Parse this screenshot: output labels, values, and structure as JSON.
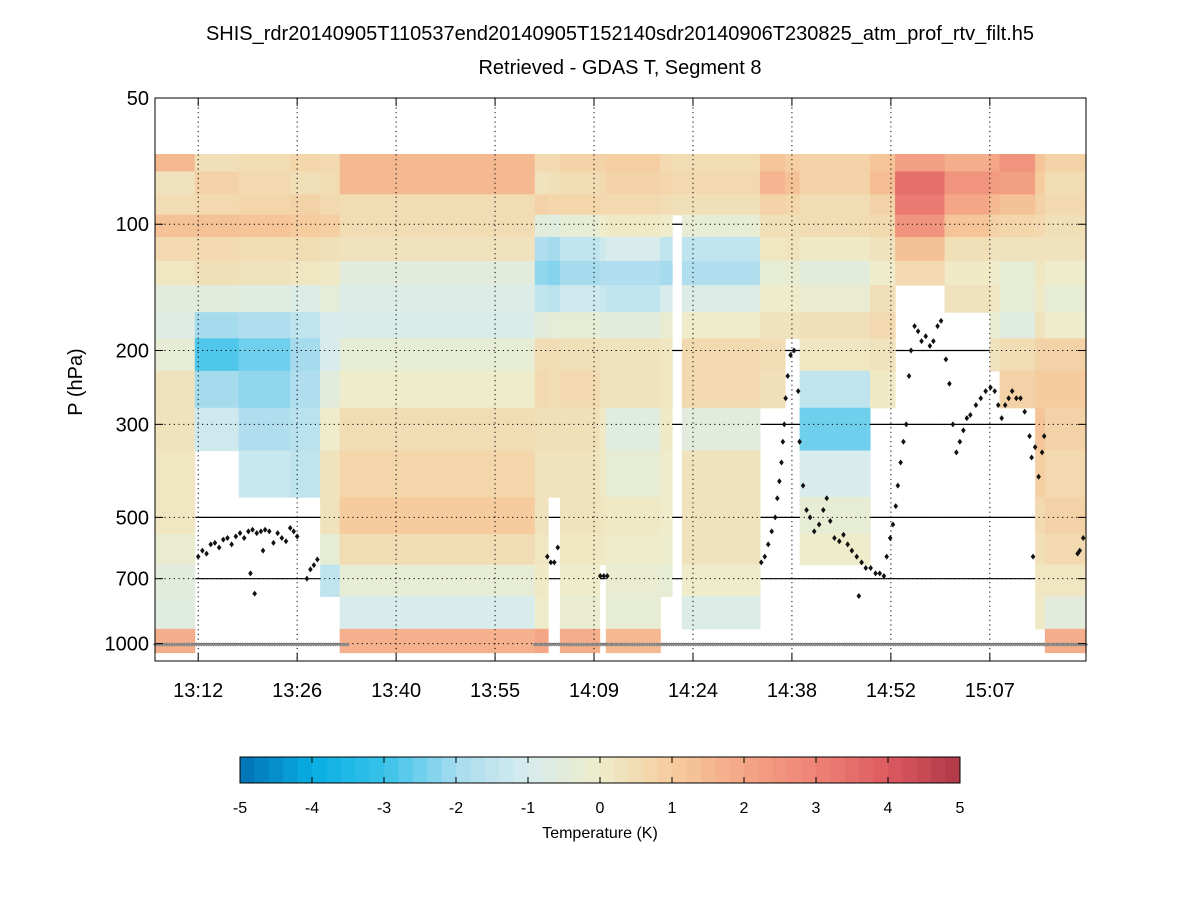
{
  "chart_data": {
    "type": "heatmap",
    "title": "SHIS_rdr20140905T110537end20140905T152140sdr20140906T230825_atm_prof_rtv_filt.h5",
    "subtitle": "Retrieved - GDAS T, Segment 8",
    "xlabel": "",
    "ylabel": "P (hPa)",
    "x_units": "minutes after 13:00",
    "xlim": [
      6.0,
      139.6
    ],
    "ylim": [
      50,
      1100
    ],
    "yscale": "log",
    "y_reversed": true,
    "grid": true,
    "x_ticks": [
      12.2,
      26.4,
      40.6,
      54.8,
      69.0,
      83.2,
      97.4,
      111.6,
      125.8
    ],
    "x_tick_labels": [
      "13:12",
      "13:26",
      "13:40",
      "13:55",
      "14:09",
      "14:24",
      "14:38",
      "14:52",
      "15:07"
    ],
    "y_ticks": [
      50,
      100,
      200,
      300,
      500,
      700,
      1000
    ],
    "y_tick_labels": [
      "50",
      "100",
      "200",
      "300",
      "500",
      "700",
      "1000"
    ],
    "levels_hPa": [
      70,
      80,
      90,
      100,
      115,
      130,
      150,
      175,
      200,
      250,
      300,
      400,
      500,
      600,
      700,
      850,
      1000
    ],
    "segments": [
      {
        "t": [
          6.0,
          11.7
        ],
        "values": [
          1.5,
          0.3,
          0.5,
          1.3,
          0.6,
          0.2,
          -0.5,
          -0.7,
          -0.3,
          0.3,
          0.3,
          0.2,
          0.2,
          -0.2,
          -0.5,
          -0.6,
          1.8
        ]
      },
      {
        "t": [
          11.7,
          18.0
        ],
        "values": [
          0.4,
          0.8,
          0.6,
          1.3,
          0.6,
          0.4,
          -0.5,
          -2.0,
          -2.8,
          -2.0,
          -1.2,
          null,
          null,
          null,
          null,
          null,
          null
        ]
      },
      {
        "t": [
          18.0,
          25.4
        ],
        "values": [
          0.5,
          0.6,
          0.7,
          1.2,
          0.5,
          0.3,
          -0.6,
          -1.8,
          -2.5,
          -2.2,
          -1.8,
          -1.3,
          null,
          null,
          null,
          null,
          null
        ]
      },
      {
        "t": [
          25.4,
          29.7
        ],
        "values": [
          0.7,
          0.4,
          0.8,
          1.0,
          0.5,
          0.2,
          -0.8,
          -1.5,
          -2.0,
          -1.8,
          -1.6,
          -1.5,
          null,
          null,
          null,
          null,
          null
        ]
      },
      {
        "t": [
          29.7,
          32.5
        ],
        "values": [
          0.6,
          0.5,
          0.6,
          0.9,
          0.4,
          0.1,
          -0.4,
          -1.0,
          -1.0,
          -0.5,
          0.0,
          0.3,
          0.3,
          -0.3,
          -1.5,
          null,
          null
        ]
      },
      {
        "t": [
          32.5,
          60.5
        ],
        "values": [
          1.5,
          1.5,
          0.5,
          0.5,
          0.3,
          -0.5,
          -0.8,
          -0.9,
          -0.3,
          0.0,
          0.5,
          0.7,
          1.0,
          0.5,
          -0.3,
          -1.0,
          1.7
        ]
      },
      {
        "t": [
          60.5,
          62.4
        ],
        "values": [
          0.6,
          0.3,
          0.8,
          -0.5,
          -1.8,
          -2.2,
          -1.5,
          -0.5,
          0.5,
          0.6,
          0.4,
          0.3,
          0.3,
          0.2,
          0.1,
          0.0,
          2.0
        ]
      },
      {
        "t": [
          62.4,
          64.1
        ],
        "values": [
          0.6,
          0.4,
          0.7,
          -0.6,
          -2.0,
          -2.3,
          -1.6,
          -0.4,
          0.5,
          0.5,
          0.4,
          0.3,
          null,
          null,
          null,
          null,
          null
        ]
      },
      {
        "t": [
          64.1,
          69.8
        ],
        "values": [
          0.8,
          0.5,
          0.7,
          -0.3,
          -1.5,
          -2.0,
          -1.2,
          -0.3,
          0.4,
          0.6,
          0.4,
          0.3,
          0.3,
          0.2,
          0.0,
          -0.2,
          1.8
        ]
      },
      {
        "t": [
          69.8,
          70.7
        ],
        "values": [
          0.8,
          0.6,
          0.6,
          0.0,
          -1.2,
          -1.8,
          -1.3,
          -0.5,
          0.3,
          0.3,
          0.1,
          0.1,
          0.2,
          0.1,
          null,
          null,
          null
        ]
      },
      {
        "t": [
          70.7,
          78.5
        ],
        "values": [
          0.9,
          0.8,
          0.6,
          0.1,
          -1.0,
          -1.8,
          -1.5,
          -0.5,
          0.3,
          0.3,
          -0.6,
          -0.3,
          0.1,
          0.0,
          -0.2,
          -0.3,
          1.5
        ]
      },
      {
        "t": [
          78.5,
          80.2
        ],
        "values": [
          0.6,
          0.7,
          0.5,
          0.0,
          -1.5,
          -2.0,
          -1.0,
          -0.2,
          0.2,
          0.2,
          0.1,
          0.0,
          0.0,
          -0.1,
          -0.3,
          null,
          null
        ]
      },
      {
        "t": [
          80.2,
          81.6
        ],
        "values": [
          0.5,
          0.6,
          0.4,
          null,
          null,
          null,
          null,
          null,
          null,
          null,
          null,
          null,
          null,
          null,
          null,
          null,
          null
        ]
      },
      {
        "t": [
          81.6,
          92.8
        ],
        "values": [
          0.5,
          0.6,
          0.4,
          -0.3,
          -1.5,
          -1.8,
          -0.8,
          0.0,
          0.6,
          0.6,
          -0.5,
          0.3,
          0.3,
          0.3,
          0.0,
          -0.8,
          null
        ]
      },
      {
        "t": [
          92.8,
          96.4
        ],
        "values": [
          1.2,
          1.6,
          0.8,
          0.4,
          0.2,
          -0.3,
          0.0,
          0.3,
          0.5,
          0.4,
          null,
          null,
          null,
          null,
          null,
          null,
          null
        ]
      },
      {
        "t": [
          96.4,
          98.5
        ],
        "values": [
          0.9,
          1.3,
          0.7,
          0.4,
          0.3,
          -0.2,
          0.0,
          0.3,
          null,
          null,
          null,
          null,
          null,
          null,
          null,
          null,
          null
        ]
      },
      {
        "t": [
          98.5,
          108.6
        ],
        "values": [
          0.8,
          0.8,
          0.5,
          0.5,
          0.1,
          -0.5,
          -0.2,
          0.4,
          0.2,
          -1.5,
          -2.5,
          -1.0,
          -0.3,
          0.0,
          null,
          null,
          null
        ]
      },
      {
        "t": [
          108.6,
          112.2
        ],
        "values": [
          1.2,
          1.4,
          0.8,
          0.6,
          0.3,
          0.0,
          0.4,
          0.6,
          0.3,
          0.1,
          null,
          null,
          null,
          null,
          null,
          null,
          null
        ]
      },
      {
        "t": [
          112.2,
          119.3
        ],
        "values": [
          2.2,
          3.5,
          3.2,
          2.5,
          1.3,
          0.6,
          null,
          null,
          null,
          null,
          null,
          null,
          null,
          null,
          null,
          null,
          null
        ]
      },
      {
        "t": [
          119.3,
          125.8
        ],
        "values": [
          1.8,
          2.5,
          2.0,
          1.2,
          0.4,
          0.1,
          0.3,
          null,
          null,
          null,
          null,
          null,
          null,
          null,
          null,
          null,
          null
        ]
      },
      {
        "t": [
          125.8,
          127.2
        ],
        "values": [
          2.0,
          2.3,
          1.5,
          0.8,
          0.3,
          0.0,
          0.2,
          -0.2,
          0.3,
          null,
          null,
          null,
          null,
          null,
          null,
          null,
          null
        ]
      },
      {
        "t": [
          127.2,
          132.3
        ],
        "values": [
          2.5,
          2.2,
          1.3,
          0.7,
          0.3,
          -0.3,
          -0.3,
          -0.6,
          0.5,
          0.8,
          null,
          null,
          null,
          null,
          null,
          null,
          null
        ]
      },
      {
        "t": [
          132.3,
          133.7
        ],
        "values": [
          1.2,
          1.0,
          0.8,
          0.6,
          0.3,
          0.2,
          0.1,
          0.3,
          0.8,
          1.0,
          1.2,
          0.9,
          0.6,
          0.4,
          0.2,
          0.1,
          null
        ]
      },
      {
        "t": [
          133.7,
          139.6
        ],
        "values": [
          0.8,
          0.5,
          0.6,
          0.4,
          0.3,
          0.0,
          -0.3,
          0.0,
          0.8,
          1.0,
          0.8,
          0.6,
          0.8,
          0.6,
          0.2,
          -0.5,
          1.8
        ]
      }
    ],
    "cloud_top_points": [
      [
        12.2,
        620
      ],
      [
        12.8,
        600
      ],
      [
        13.4,
        610
      ],
      [
        14.0,
        580
      ],
      [
        14.6,
        575
      ],
      [
        15.2,
        590
      ],
      [
        15.8,
        565
      ],
      [
        16.4,
        560
      ],
      [
        17.0,
        580
      ],
      [
        17.6,
        555
      ],
      [
        18.2,
        545
      ],
      [
        18.8,
        560
      ],
      [
        19.4,
        540
      ],
      [
        20.0,
        535
      ],
      [
        20.6,
        545
      ],
      [
        21.2,
        540
      ],
      [
        21.8,
        535
      ],
      [
        22.4,
        540
      ],
      [
        23.0,
        575
      ],
      [
        23.6,
        545
      ],
      [
        24.2,
        560
      ],
      [
        24.8,
        570
      ],
      [
        25.4,
        530
      ],
      [
        25.9,
        540
      ],
      [
        26.4,
        555
      ],
      [
        19.7,
        680
      ],
      [
        20.3,
        760
      ],
      [
        21.5,
        600
      ],
      [
        27.8,
        700
      ],
      [
        28.3,
        665
      ],
      [
        28.8,
        650
      ],
      [
        29.3,
        630
      ],
      [
        62.3,
        620
      ],
      [
        62.8,
        640
      ],
      [
        63.3,
        640
      ],
      [
        63.8,
        590
      ],
      [
        69.9,
        690
      ],
      [
        70.4,
        690
      ],
      [
        70.9,
        690
      ],
      [
        93.0,
        640
      ],
      [
        93.5,
        620
      ],
      [
        94.0,
        580
      ],
      [
        94.5,
        540
      ],
      [
        95.0,
        500
      ],
      [
        95.3,
        450
      ],
      [
        95.6,
        410
      ],
      [
        95.9,
        370
      ],
      [
        96.1,
        330
      ],
      [
        96.3,
        300
      ],
      [
        96.5,
        260
      ],
      [
        96.8,
        230
      ],
      [
        97.2,
        205
      ],
      [
        97.7,
        200
      ],
      [
        98.3,
        250
      ],
      [
        98.5,
        330
      ],
      [
        99.0,
        420
      ],
      [
        99.5,
        480
      ],
      [
        100.0,
        500
      ],
      [
        100.6,
        540
      ],
      [
        101.3,
        520
      ],
      [
        101.9,
        480
      ],
      [
        102.4,
        450
      ],
      [
        102.9,
        510
      ],
      [
        103.5,
        560
      ],
      [
        104.2,
        570
      ],
      [
        104.8,
        550
      ],
      [
        105.4,
        580
      ],
      [
        106.0,
        600
      ],
      [
        106.7,
        620
      ],
      [
        107.4,
        640
      ],
      [
        108.0,
        660
      ],
      [
        108.7,
        660
      ],
      [
        109.4,
        680
      ],
      [
        110.0,
        680
      ],
      [
        110.6,
        690
      ],
      [
        107.0,
        770
      ],
      [
        111.0,
        620
      ],
      [
        111.5,
        560
      ],
      [
        111.9,
        520
      ],
      [
        112.3,
        470
      ],
      [
        112.6,
        420
      ],
      [
        113.0,
        370
      ],
      [
        113.4,
        330
      ],
      [
        113.8,
        300
      ],
      [
        114.2,
        230
      ],
      [
        114.5,
        200
      ],
      [
        115.0,
        175
      ],
      [
        115.5,
        180
      ],
      [
        116.0,
        190
      ],
      [
        116.6,
        185
      ],
      [
        117.2,
        195
      ],
      [
        117.7,
        190
      ],
      [
        118.3,
        175
      ],
      [
        118.8,
        170
      ],
      [
        119.5,
        210
      ],
      [
        120.0,
        240
      ],
      [
        120.5,
        300
      ],
      [
        121.0,
        350
      ],
      [
        121.5,
        330
      ],
      [
        122.0,
        310
      ],
      [
        122.5,
        290
      ],
      [
        123.0,
        285
      ],
      [
        123.8,
        270
      ],
      [
        124.5,
        260
      ],
      [
        125.2,
        250
      ],
      [
        125.9,
        245
      ],
      [
        126.5,
        250
      ],
      [
        127.0,
        270
      ],
      [
        127.5,
        290
      ],
      [
        128.0,
        270
      ],
      [
        128.5,
        260
      ],
      [
        129.0,
        250
      ],
      [
        129.6,
        260
      ],
      [
        130.2,
        260
      ],
      [
        130.8,
        280
      ],
      [
        131.5,
        320
      ],
      [
        131.8,
        360
      ],
      [
        132.3,
        340
      ],
      [
        132.8,
        400
      ],
      [
        133.3,
        350
      ],
      [
        133.6,
        320
      ],
      [
        132.0,
        620
      ],
      [
        138.4,
        610
      ],
      [
        138.7,
        600
      ],
      [
        139.2,
        560
      ]
    ],
    "surface_marker_ranges": [
      [
        6.0,
        34.0
      ],
      [
        60.5,
        139.6
      ]
    ],
    "surface_marker_pressure": 1005,
    "colorbar": {
      "label": "Temperature (K)",
      "range": [
        -5,
        5
      ],
      "tick_values": [
        -5,
        -4,
        -3,
        -2,
        -1,
        0,
        1,
        2,
        3,
        4,
        5
      ],
      "tick_labels": [
        "-5",
        "-4",
        "-3",
        "-2",
        "-1",
        "0",
        "1",
        "2",
        "3",
        "4",
        "5"
      ],
      "colormap_stops": [
        [
          -5,
          "#0070b4"
        ],
        [
          -4,
          "#08aee2"
        ],
        [
          -3,
          "#38c2ea"
        ],
        [
          -2,
          "#a6dbee"
        ],
        [
          -1,
          "#d8ecee"
        ],
        [
          0,
          "#eeecca"
        ],
        [
          1,
          "#f6cc9e"
        ],
        [
          2,
          "#f4a686"
        ],
        [
          3,
          "#ee8276"
        ],
        [
          4,
          "#dc5a60"
        ],
        [
          5,
          "#b03848"
        ]
      ]
    },
    "colors": {
      "cloud_top_marker": "#111111",
      "surface_marker": "#888888"
    }
  }
}
